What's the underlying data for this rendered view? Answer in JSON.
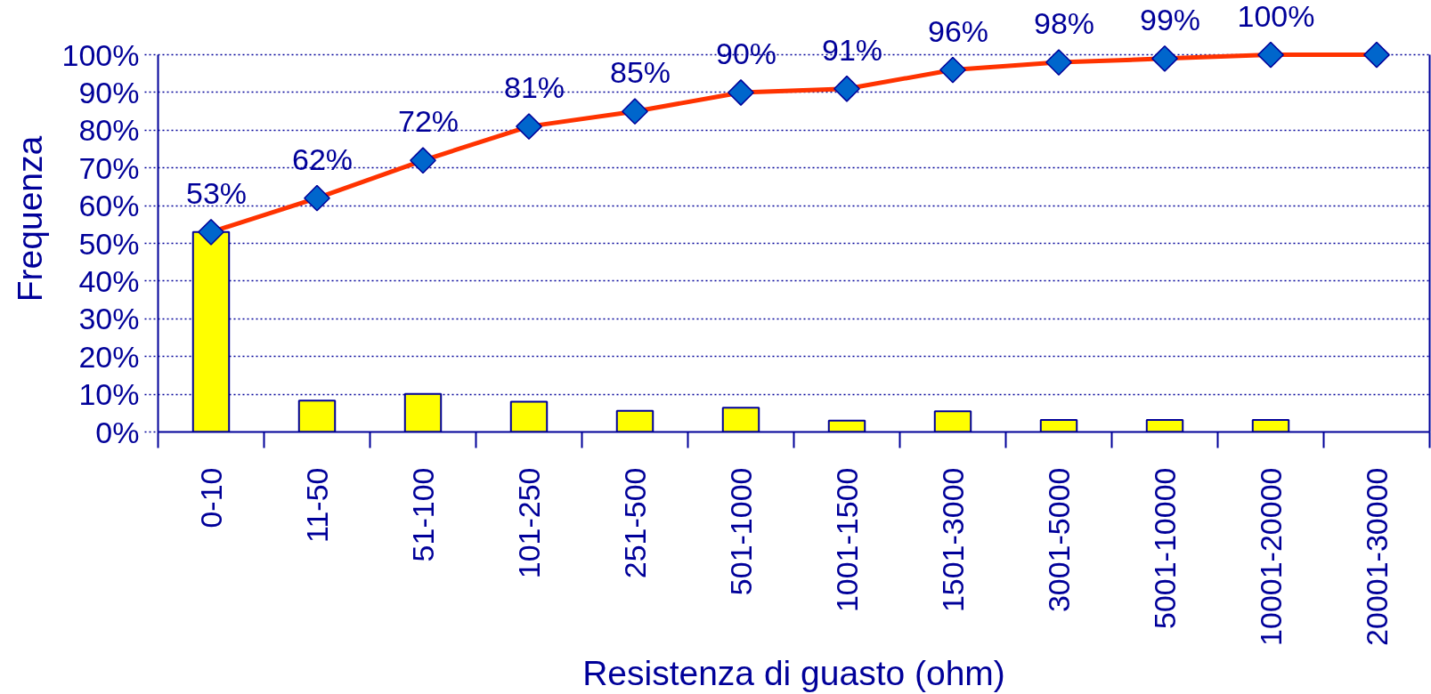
{
  "chart_data": {
    "type": "bar",
    "xlabel": "Resistenza di guasto (ohm)",
    "ylabel": "Frequenza",
    "categories": [
      "0-10",
      "11-50",
      "51-100",
      "101-250",
      "251-500",
      "501-1000",
      "1001-1500",
      "1501-3000",
      "3001-5000",
      "5001-10000",
      "10001-20000",
      "20001-30000"
    ],
    "ylim": [
      0,
      100
    ],
    "yticks": [
      {
        "value": 0,
        "label": "0%"
      },
      {
        "value": 10,
        "label": "10%"
      },
      {
        "value": 20,
        "label": "20%"
      },
      {
        "value": 30,
        "label": "30%"
      },
      {
        "value": 40,
        "label": "40%"
      },
      {
        "value": 50,
        "label": "50%"
      },
      {
        "value": 60,
        "label": "60%"
      },
      {
        "value": 70,
        "label": "70%"
      },
      {
        "value": 80,
        "label": "80%"
      },
      {
        "value": 90,
        "label": "90%"
      },
      {
        "value": 100,
        "label": "100%"
      }
    ],
    "grid": "y",
    "series": [
      {
        "color": "#ffff00",
        "values": [
          53,
          8.3,
          10.1,
          8,
          5.6,
          6.4,
          3,
          5.5,
          3.2,
          3.2,
          3.2,
          null
        ]
      },
      {
        "type": "line",
        "color": "#ff3300",
        "marker": "diamond",
        "values": [
          53,
          62,
          72,
          81,
          85,
          90,
          91,
          96,
          98,
          99,
          100,
          100
        ],
        "value_labels": [
          "53%",
          "62%",
          "72%",
          "81%",
          "85%",
          "90%",
          "91%",
          "96%",
          "98%",
          "99%",
          "100%",
          null
        ]
      }
    ]
  }
}
